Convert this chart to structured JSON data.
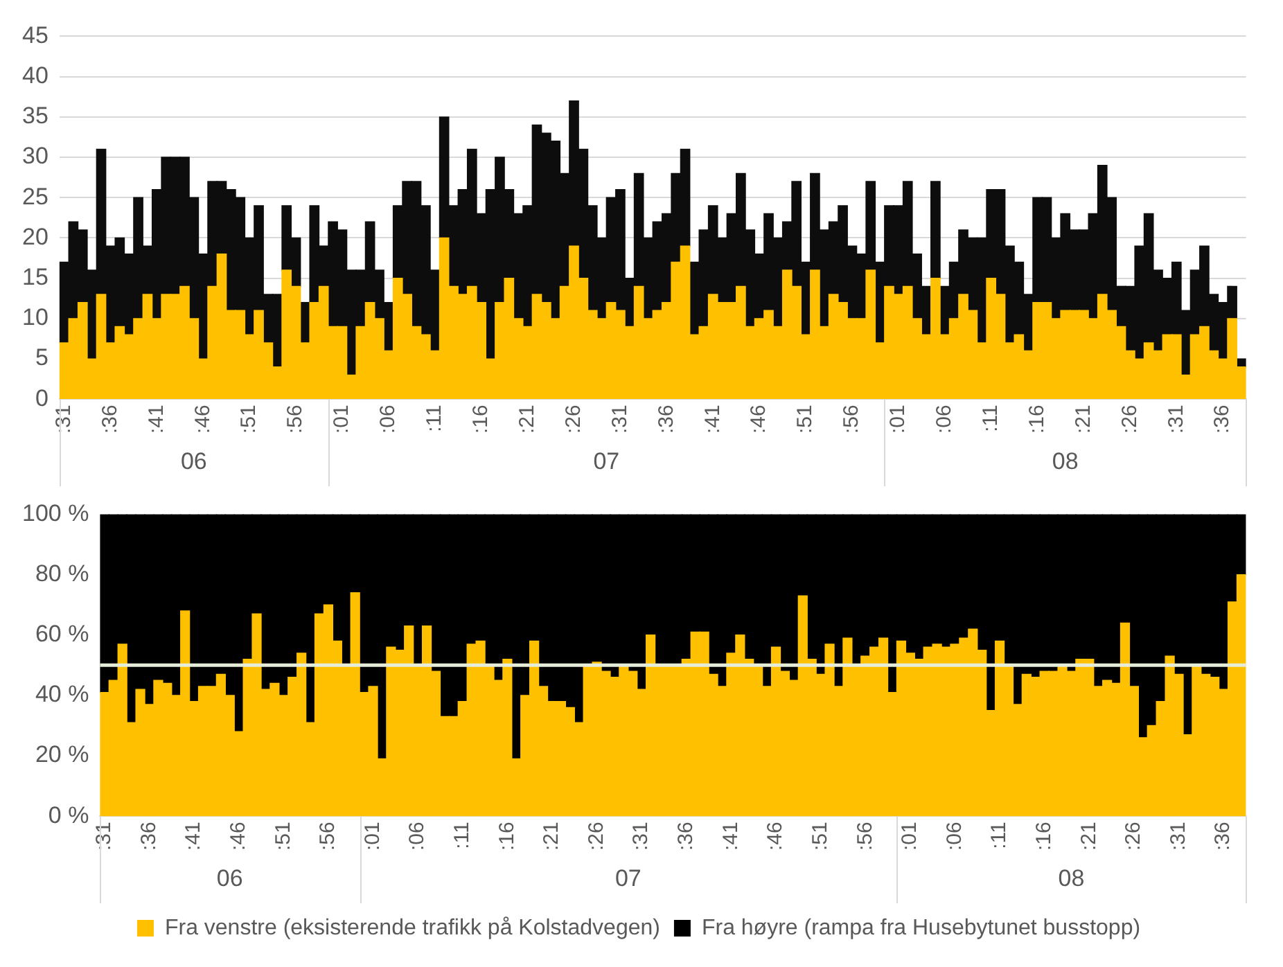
{
  "chart_data": [
    {
      "type": "bar",
      "stacked": true,
      "grid": "y",
      "categories": [
        ":31",
        null,
        null,
        null,
        null,
        ":36",
        null,
        null,
        null,
        null,
        ":41",
        null,
        null,
        null,
        null,
        ":46",
        null,
        null,
        null,
        null,
        ":51",
        null,
        null,
        null,
        null,
        ":56",
        null,
        null,
        null,
        null,
        ":01",
        null,
        null,
        null,
        null,
        ":06",
        null,
        null,
        null,
        null,
        ":11",
        null,
        null,
        null,
        null,
        ":16",
        null,
        null,
        null,
        null,
        ":21",
        null,
        null,
        null,
        null,
        ":26",
        null,
        null,
        null,
        null,
        ":31",
        null,
        null,
        null,
        null,
        ":36",
        null,
        null,
        null,
        null,
        ":41",
        null,
        null,
        null,
        null,
        ":46",
        null,
        null,
        null,
        null,
        ":51",
        null,
        null,
        null,
        null,
        ":56",
        null,
        null,
        null,
        null,
        ":01",
        null,
        null,
        null,
        null,
        ":06",
        null,
        null,
        null,
        null,
        ":11",
        null,
        null,
        null,
        null,
        ":16",
        null,
        null,
        null,
        null,
        ":21",
        null,
        null,
        null,
        null,
        ":26",
        null,
        null,
        null,
        null,
        ":31",
        null,
        null,
        null,
        null,
        ":36",
        null,
        null
      ],
      "ylim": [
        0,
        45
      ],
      "yticks": [
        0,
        5,
        10,
        15,
        20,
        25,
        30,
        35,
        40,
        45
      ],
      "annotations": [
        "06",
        "07",
        "08"
      ],
      "series": [
        {
          "color": "#ffc000",
          "values": [
            7,
            10,
            12,
            5,
            13,
            7,
            9,
            8,
            10,
            13,
            10,
            13,
            13,
            14,
            10,
            5,
            14,
            18,
            11,
            11,
            8,
            11,
            7,
            4,
            16,
            14,
            7,
            12,
            14,
            9,
            9,
            3,
            9,
            12,
            10,
            6,
            15,
            13,
            9,
            8,
            6,
            20,
            14,
            13,
            14,
            12,
            5,
            12,
            15,
            10,
            9,
            13,
            12,
            10,
            14,
            19,
            15,
            11,
            10,
            12,
            11,
            9,
            14,
            10,
            11,
            12,
            17,
            19,
            8,
            9,
            13,
            12,
            12,
            14,
            9,
            10,
            11,
            9,
            16,
            14,
            8,
            16,
            9,
            13,
            12,
            10,
            10,
            16,
            7,
            14,
            13,
            14,
            10,
            8,
            15,
            8,
            10,
            13,
            11,
            7,
            15,
            13,
            7,
            8,
            6,
            12,
            12,
            10,
            11,
            11,
            11,
            10,
            13,
            11,
            9,
            6,
            5,
            7,
            6,
            8,
            8,
            3,
            8,
            9,
            6,
            5,
            10,
            4
          ]
        },
        {
          "color": "#0d0d0d",
          "values": [
            10,
            12,
            9,
            11,
            18,
            12,
            11,
            10,
            15,
            6,
            16,
            17,
            17,
            16,
            15,
            13,
            13,
            9,
            15,
            14,
            12,
            13,
            6,
            9,
            8,
            6,
            5,
            12,
            5,
            13,
            12,
            13,
            7,
            10,
            6,
            6,
            9,
            14,
            18,
            16,
            10,
            15,
            10,
            13,
            17,
            11,
            21,
            18,
            11,
            13,
            15,
            21,
            21,
            22,
            14,
            18,
            16,
            13,
            10,
            13,
            15,
            6,
            14,
            10,
            11,
            11,
            11,
            12,
            9,
            12,
            11,
            8,
            11,
            14,
            12,
            8,
            12,
            11,
            6,
            13,
            9,
            12,
            12,
            9,
            12,
            9,
            8,
            11,
            10,
            10,
            11,
            13,
            8,
            6,
            12,
            6,
            7,
            8,
            9,
            13,
            11,
            13,
            12,
            9,
            7,
            13,
            13,
            10,
            12,
            10,
            10,
            13,
            16,
            14,
            5,
            8,
            14,
            16,
            10,
            7,
            9,
            8,
            8,
            10,
            7,
            7,
            4,
            1
          ]
        }
      ]
    },
    {
      "type": "bar",
      "stacked": true,
      "legend": "bottom",
      "categories": [
        ":31",
        null,
        null,
        null,
        null,
        ":36",
        null,
        null,
        null,
        null,
        ":41",
        null,
        null,
        null,
        null,
        ":46",
        null,
        null,
        null,
        null,
        ":51",
        null,
        null,
        null,
        null,
        ":56",
        null,
        null,
        null,
        null,
        ":01",
        null,
        null,
        null,
        null,
        ":06",
        null,
        null,
        null,
        null,
        ":11",
        null,
        null,
        null,
        null,
        ":16",
        null,
        null,
        null,
        null,
        ":21",
        null,
        null,
        null,
        null,
        ":26",
        null,
        null,
        null,
        null,
        ":31",
        null,
        null,
        null,
        null,
        ":36",
        null,
        null,
        null,
        null,
        ":41",
        null,
        null,
        null,
        null,
        ":46",
        null,
        null,
        null,
        null,
        ":51",
        null,
        null,
        null,
        null,
        ":56",
        null,
        null,
        null,
        null,
        ":01",
        null,
        null,
        null,
        null,
        ":06",
        null,
        null,
        null,
        null,
        ":11",
        null,
        null,
        null,
        null,
        ":16",
        null,
        null,
        null,
        null,
        ":21",
        null,
        null,
        null,
        null,
        ":26",
        null,
        null,
        null,
        null,
        ":31",
        null,
        null,
        null,
        null,
        ":36",
        null,
        null
      ],
      "ylim": [
        0,
        100
      ],
      "yticks": [
        {
          "value": 0,
          "label": "0 %"
        },
        {
          "value": 20,
          "label": "20 %"
        },
        {
          "value": 40,
          "label": "40 %"
        },
        {
          "value": 60,
          "label": "60 %"
        },
        {
          "value": 80,
          "label": "80 %"
        },
        {
          "value": 100,
          "label": "100 %"
        }
      ],
      "annotations": [
        "06",
        "07",
        "08"
      ],
      "ref_lines": [
        {
          "axis": "y",
          "value": 50,
          "color": "#e5ecd8"
        }
      ],
      "series": [
        {
          "name": "Fra venstre (eksisterende trafikk på Kolstadvegen)",
          "color": "#ffc000",
          "values": [
            41,
            45,
            57,
            31,
            42,
            37,
            45,
            44,
            40,
            68,
            38,
            43,
            43,
            47,
            40,
            28,
            52,
            67,
            42,
            44,
            40,
            46,
            54,
            31,
            67,
            70,
            58,
            50,
            74,
            41,
            43,
            19,
            56,
            55,
            63,
            50,
            63,
            48,
            33,
            33,
            38,
            57,
            58,
            50,
            45,
            52,
            19,
            40,
            58,
            43,
            38,
            38,
            36,
            31,
            50,
            51,
            48,
            46,
            50,
            48,
            42,
            60,
            50,
            50,
            50,
            52,
            61,
            61,
            47,
            43,
            54,
            60,
            52,
            50,
            43,
            56,
            48,
            45,
            73,
            52,
            47,
            57,
            43,
            59,
            50,
            53,
            56,
            59,
            41,
            58,
            54,
            52,
            56,
            57,
            56,
            57,
            59,
            62,
            55,
            35,
            58,
            50,
            37,
            47,
            46,
            48,
            48,
            50,
            48,
            52,
            52,
            43,
            45,
            44,
            64,
            43,
            26,
            30,
            38,
            53,
            47,
            27,
            50,
            47,
            46,
            42,
            71,
            80
          ]
        },
        {
          "name": "Fra høyre (rampa fra Husebytunet busstopp)",
          "color": "#000000",
          "values": [
            59,
            55,
            43,
            69,
            58,
            63,
            55,
            56,
            60,
            32,
            62,
            57,
            57,
            53,
            60,
            72,
            48,
            33,
            58,
            56,
            60,
            54,
            46,
            69,
            33,
            30,
            42,
            50,
            26,
            59,
            57,
            81,
            44,
            45,
            37,
            50,
            37,
            52,
            67,
            67,
            62,
            43,
            42,
            50,
            55,
            48,
            81,
            60,
            42,
            57,
            62,
            62,
            64,
            69,
            50,
            49,
            52,
            54,
            50,
            52,
            58,
            40,
            50,
            50,
            50,
            48,
            39,
            39,
            53,
            57,
            46,
            40,
            48,
            50,
            57,
            44,
            52,
            55,
            27,
            48,
            53,
            43,
            57,
            41,
            50,
            47,
            44,
            41,
            59,
            42,
            46,
            48,
            44,
            43,
            44,
            43,
            41,
            38,
            45,
            65,
            42,
            50,
            63,
            53,
            54,
            52,
            52,
            50,
            52,
            48,
            48,
            57,
            55,
            56,
            36,
            57,
            74,
            70,
            62,
            47,
            53,
            73,
            50,
            53,
            54,
            58,
            29,
            20
          ]
        }
      ]
    }
  ]
}
